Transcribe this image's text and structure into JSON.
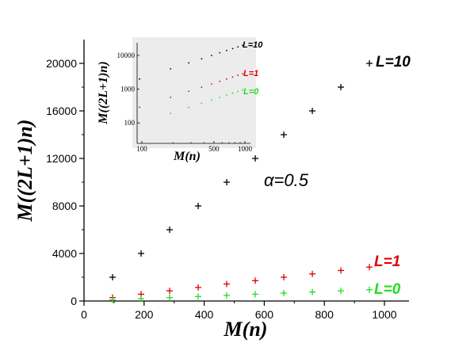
{
  "chart_data": [
    {
      "type": "scatter",
      "xlabel": "M(n)",
      "ylabel": "M((2L+1)n)",
      "xlim": [
        0,
        1100
      ],
      "ylim": [
        0,
        22000
      ],
      "x_ticks": [
        "0",
        "200",
        "400",
        "600",
        "800",
        "1000"
      ],
      "y_ticks": [
        "0",
        "4000",
        "8000",
        "12000",
        "16000",
        "20000"
      ],
      "annotation": "α=0.5",
      "grid": false,
      "marker": "+",
      "series": [
        {
          "name": "L=10",
          "color": "#000000",
          "x": [
            95,
            190,
            285,
            380,
            475,
            570,
            665,
            760,
            855,
            950
          ],
          "y": [
            2000,
            4000,
            6000,
            8000,
            10000,
            12000,
            14000,
            16000,
            18000,
            20000
          ]
        },
        {
          "name": "L=1",
          "color": "#e00000",
          "x": [
            95,
            190,
            285,
            380,
            475,
            570,
            665,
            760,
            855,
            950
          ],
          "y": [
            290,
            570,
            860,
            1140,
            1430,
            1710,
            2000,
            2280,
            2570,
            2850
          ]
        },
        {
          "name": "L=0",
          "color": "#22dd22",
          "x": [
            95,
            190,
            285,
            380,
            475,
            570,
            665,
            760,
            855,
            950
          ],
          "y": [
            95,
            190,
            285,
            380,
            475,
            570,
            665,
            760,
            855,
            950
          ]
        }
      ]
    },
    {
      "type": "scatter",
      "scale": "log-log",
      "xlabel": "M(n)",
      "ylabel": "M((2L+1)n)",
      "xlim": [
        80,
        1100
      ],
      "ylim": [
        40,
        30000
      ],
      "x_ticks": [
        {
          "value": 100,
          "label": "100"
        },
        {
          "value": 500,
          "label": "500"
        },
        {
          "value": 1000,
          "label": "1000"
        }
      ],
      "y_ticks": [
        {
          "value": 100,
          "label": "100"
        },
        {
          "value": 1000,
          "label": "1000"
        },
        {
          "value": 10000,
          "label": "10000"
        }
      ],
      "grid": false,
      "marker": ".",
      "series": [
        {
          "name": "L=10",
          "color": "#000000",
          "x": [
            95,
            190,
            285,
            380,
            475,
            570,
            665,
            760,
            855,
            950
          ],
          "y": [
            2000,
            4000,
            6000,
            8000,
            10000,
            12000,
            14000,
            16000,
            18000,
            20000
          ]
        },
        {
          "name": "L=1",
          "color": "#e00000",
          "x": [
            95,
            190,
            285,
            380,
            475,
            570,
            665,
            760,
            855,
            950
          ],
          "y": [
            290,
            570,
            860,
            1140,
            1430,
            1710,
            2000,
            2280,
            2570,
            2850
          ]
        },
        {
          "name": "L=0",
          "color": "#22dd22",
          "x": [
            95,
            190,
            285,
            380,
            475,
            570,
            665,
            760,
            855,
            950
          ],
          "y": [
            95,
            190,
            285,
            380,
            475,
            570,
            665,
            760,
            855,
            950
          ]
        }
      ]
    }
  ]
}
